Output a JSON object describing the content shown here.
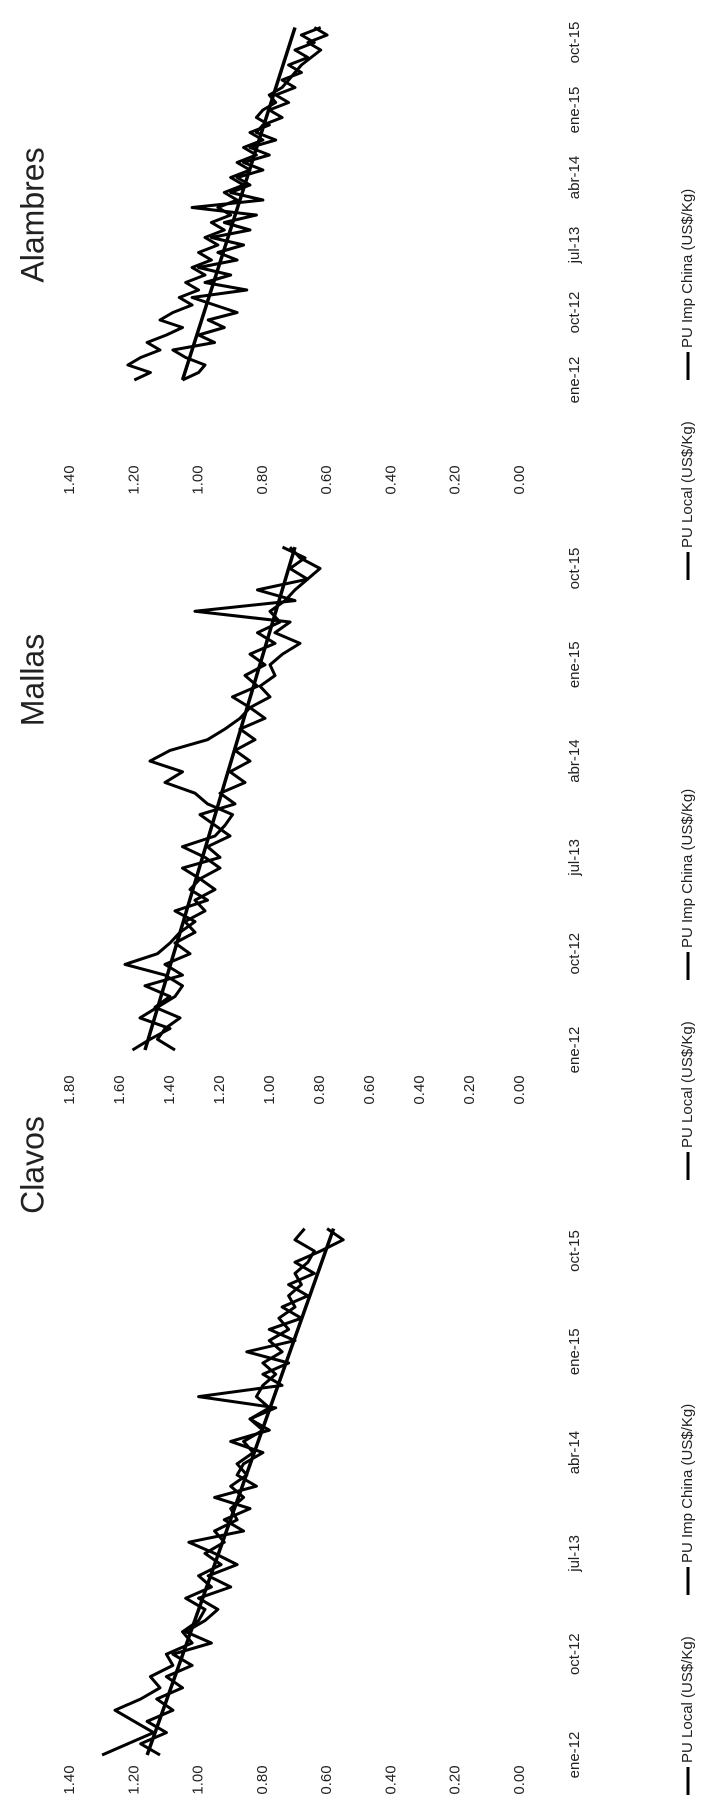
{
  "chart_data": [
    {
      "type": "line",
      "title": "Alambres",
      "categories": [
        "ene-12",
        null,
        null,
        null,
        null,
        null,
        null,
        null,
        null,
        "oct-12",
        null,
        null,
        null,
        null,
        null,
        null,
        null,
        null,
        "jul-13",
        null,
        null,
        null,
        null,
        null,
        null,
        null,
        null,
        "abr-14",
        null,
        null,
        null,
        null,
        null,
        null,
        null,
        null,
        "ene-15",
        null,
        null,
        null,
        null,
        null,
        null,
        null,
        null,
        "oct-15",
        null,
        null
      ],
      "series": [
        {
          "name": "PU Local (US$/Kg)",
          "color": "#000000",
          "values": [
            1.2,
            1.15,
            1.22,
            1.18,
            1.12,
            1.16,
            1.1,
            1.05,
            1.12,
            1.08,
            1.02,
            1.06,
            1.0,
            1.04,
            0.98,
            1.02,
            0.96,
            1.0,
            0.94,
            0.98,
            0.92,
            0.96,
            0.9,
            0.94,
            0.88,
            0.92,
            0.86,
            0.9,
            0.84,
            0.88,
            0.82,
            0.86,
            0.8,
            0.84,
            0.78,
            0.82,
            0.8,
            0.76,
            0.78,
            0.74,
            0.72,
            0.7,
            0.68,
            0.65,
            0.62,
            0.66,
            0.6,
            0.64
          ]
        },
        {
          "name": "PU Imp China (US$/Kg)",
          "color": "#000000",
          "values": [
            1.05,
            1.0,
            0.98,
            1.04,
            1.08,
            0.95,
            1.0,
            0.92,
            0.97,
            0.88,
            0.95,
            1.02,
            0.85,
            0.98,
            0.9,
            1.0,
            0.88,
            0.94,
            0.86,
            0.96,
            0.84,
            0.92,
            0.82,
            1.02,
            0.8,
            0.9,
            0.84,
            0.88,
            0.8,
            0.86,
            0.78,
            0.84,
            0.76,
            0.82,
            0.8,
            0.74,
            0.78,
            0.72,
            0.76,
            0.7,
            0.74,
            0.68,
            0.72,
            0.66,
            0.7,
            0.64,
            0.68,
            0.62
          ]
        }
      ],
      "trendline": [
        1.05,
        0.7
      ],
      "ylim": [
        0,
        1.4
      ],
      "yticks": [
        {
          "value": 0,
          "label": "0.00"
        },
        {
          "value": 0.2,
          "label": "0.20"
        },
        {
          "value": 0.4,
          "label": "0.40"
        },
        {
          "value": 0.6,
          "label": "0.60"
        },
        {
          "value": 0.8,
          "label": "0.80"
        },
        {
          "value": 1,
          "label": "1.00"
        },
        {
          "value": 1.2,
          "label": "1.20"
        },
        {
          "value": 1.4,
          "label": "1.40"
        }
      ],
      "grid": false,
      "legend": "bottom"
    },
    {
      "type": "line",
      "title": "Mallas",
      "categories": [
        "ene-12",
        null,
        null,
        null,
        null,
        null,
        null,
        null,
        null,
        "oct-12",
        null,
        null,
        null,
        null,
        null,
        null,
        null,
        null,
        "jul-13",
        null,
        null,
        null,
        null,
        null,
        null,
        null,
        null,
        "abr-14",
        null,
        null,
        null,
        null,
        null,
        null,
        null,
        null,
        "ene-15",
        null,
        null,
        null,
        null,
        null,
        null,
        null,
        null,
        "oct-15",
        null,
        null
      ],
      "series": [
        {
          "name": "PU Local (US$/Kg)",
          "color": "#000000",
          "values": [
            1.55,
            1.48,
            1.4,
            1.52,
            1.45,
            1.38,
            1.35,
            1.42,
            1.58,
            1.45,
            1.4,
            1.36,
            1.3,
            1.38,
            1.25,
            1.32,
            1.28,
            1.2,
            1.26,
            1.35,
            1.22,
            1.18,
            1.15,
            1.25,
            1.3,
            1.42,
            1.35,
            1.48,
            1.4,
            1.25,
            1.18,
            1.12,
            1.08,
            1.15,
            1.05,
            1.1,
            1.02,
            1.08,
            0.98,
            1.05,
            0.96,
            1.0,
            0.94,
            0.9,
            0.85,
            0.8,
            0.88,
            0.92
          ]
        },
        {
          "name": "PU Imp China (US$/Kg)",
          "color": "#000000",
          "values": [
            1.38,
            1.45,
            1.42,
            1.36,
            1.46,
            1.4,
            1.5,
            1.35,
            1.42,
            1.32,
            1.38,
            1.3,
            1.34,
            1.26,
            1.3,
            1.22,
            1.28,
            1.35,
            1.2,
            1.25,
            1.16,
            1.22,
            1.28,
            1.14,
            1.2,
            1.1,
            1.16,
            1.08,
            1.14,
            1.06,
            1.12,
            1.02,
            1.08,
            1.0,
            1.04,
            0.98,
            1.0,
            0.95,
            0.88,
            0.98,
            0.92,
            1.3,
            0.9,
            1.05,
            0.85,
            0.92,
            0.86,
            0.95
          ]
        }
      ],
      "trendline": [
        1.5,
        0.9
      ],
      "ylim": [
        0,
        1.8
      ],
      "yticks": [
        {
          "value": 0,
          "label": "0.00"
        },
        {
          "value": 0.2,
          "label": "0.20"
        },
        {
          "value": 0.4,
          "label": "0.40"
        },
        {
          "value": 0.6,
          "label": "0.60"
        },
        {
          "value": 0.8,
          "label": "0.80"
        },
        {
          "value": 1,
          "label": "1.00"
        },
        {
          "value": 1.2,
          "label": "1.20"
        },
        {
          "value": 1.4,
          "label": "1.40"
        },
        {
          "value": 1.6,
          "label": "1.60"
        },
        {
          "value": 1.8,
          "label": "1.80"
        }
      ],
      "grid": false,
      "legend": "bottom"
    },
    {
      "type": "line",
      "title": "Clavos",
      "categories": [
        "ene-12",
        null,
        null,
        null,
        null,
        null,
        null,
        null,
        null,
        "oct-12",
        null,
        null,
        null,
        null,
        null,
        null,
        null,
        null,
        "jul-13",
        null,
        null,
        null,
        null,
        null,
        null,
        null,
        null,
        "abr-14",
        null,
        null,
        null,
        null,
        null,
        null,
        null,
        null,
        "ene-15",
        null,
        null,
        null,
        null,
        null,
        null,
        null,
        null,
        "oct-15",
        null,
        null
      ],
      "series": [
        {
          "name": "PU Local (US$/Kg)",
          "color": "#000000",
          "values": [
            1.3,
            1.22,
            1.14,
            1.2,
            1.26,
            1.18,
            1.12,
            1.15,
            1.08,
            1.1,
            1.02,
            1.05,
            1.0,
            0.98,
            1.04,
            0.96,
            1.0,
            0.93,
            0.98,
            0.92,
            0.95,
            0.88,
            0.9,
            0.86,
            0.9,
            0.85,
            0.88,
            0.83,
            0.86,
            0.8,
            0.84,
            0.78,
            0.82,
            0.8,
            0.76,
            0.8,
            0.74,
            0.78,
            0.72,
            0.75,
            0.7,
            0.72,
            0.68,
            0.7,
            0.66,
            0.64,
            0.7,
            0.67
          ]
        },
        {
          "name": "PU Imp China (US$/Kg)",
          "color": "#000000",
          "values": [
            1.12,
            1.18,
            1.1,
            1.16,
            1.08,
            1.13,
            1.05,
            1.1,
            1.02,
            1.08,
            0.96,
            1.04,
            0.98,
            0.94,
            1.0,
            0.9,
            0.97,
            0.88,
            0.95,
            1.03,
            0.86,
            0.92,
            0.84,
            0.95,
            0.82,
            0.88,
            0.86,
            0.8,
            0.9,
            0.78,
            0.84,
            0.76,
            1.0,
            0.74,
            0.8,
            0.72,
            0.85,
            0.7,
            0.78,
            0.68,
            0.74,
            0.66,
            0.72,
            0.64,
            0.7,
            0.62,
            0.55,
            0.6
          ]
        }
      ],
      "trendline": [
        1.16,
        0.58
      ],
      "ylim": [
        0,
        1.4
      ],
      "yticks": [
        {
          "value": 0,
          "label": "0.00"
        },
        {
          "value": 0.2,
          "label": "0.20"
        },
        {
          "value": 0.4,
          "label": "0.40"
        },
        {
          "value": 0.6,
          "label": "0.60"
        },
        {
          "value": 0.8,
          "label": "0.80"
        },
        {
          "value": 1,
          "label": "1.00"
        },
        {
          "value": 1.2,
          "label": "1.20"
        },
        {
          "value": 1.4,
          "label": "1.40"
        }
      ],
      "grid": false,
      "legend": "bottom"
    }
  ]
}
